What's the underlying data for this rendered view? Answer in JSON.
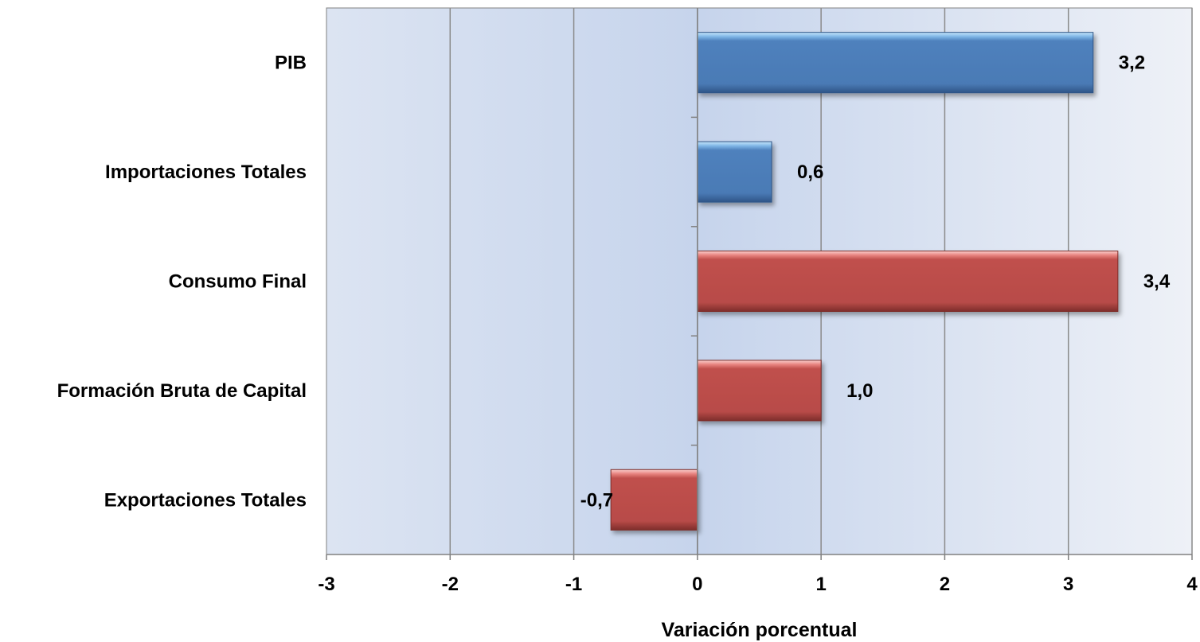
{
  "chart_data": {
    "type": "bar",
    "orientation": "horizontal",
    "categories": [
      "PIB",
      "Importaciones Totales",
      "Consumo Final",
      "Formación Bruta de Capital",
      "Exportaciones Totales"
    ],
    "values": [
      3.2,
      0.6,
      3.4,
      1.0,
      -0.7
    ],
    "data_labels": [
      "3,2",
      "0,6",
      "3,4",
      "1,0",
      "-0,7"
    ],
    "bar_colors": [
      "#4f81bd",
      "#4f81bd",
      "#c0504d",
      "#c0504d",
      "#c0504d"
    ],
    "xlim": [
      -3,
      4
    ],
    "xticks": [
      -3,
      -2,
      -1,
      0,
      1,
      2,
      3,
      4
    ],
    "xtick_labels": [
      "-3",
      "-2",
      "-1",
      "0",
      "1",
      "2",
      "3",
      "4"
    ],
    "xlabel": "Variación porcentual",
    "ylabel": "",
    "title": "",
    "grid": "vertical",
    "legend": "none"
  }
}
